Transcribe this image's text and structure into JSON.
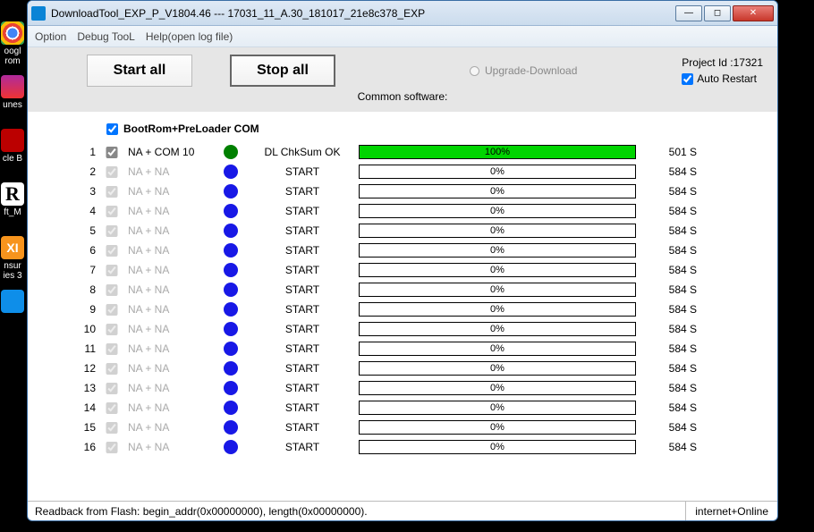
{
  "window": {
    "title": "DownloadTool_EXP_P_V1804.46 --- 17031_11_A.30_181017_21e8c378_EXP"
  },
  "menu": {
    "option": "Option",
    "debug": "Debug TooL",
    "help": "Help(open log file)"
  },
  "toolbar": {
    "start_all": "Start all",
    "stop_all": "Stop all",
    "upgrade": "Upgrade-Download",
    "project_id_label": "Project Id :17321",
    "auto_restart": "Auto Restart",
    "common": "Common software:"
  },
  "header_checkbox": "BootRom+PreLoader COM",
  "rows": [
    {
      "idx": "1",
      "port": "NA + COM 10",
      "active": true,
      "stage": "DL ChkSum OK",
      "pct": "100%",
      "fill": 100,
      "time": "501 S"
    },
    {
      "idx": "2",
      "port": "NA + NA",
      "active": false,
      "stage": "START",
      "pct": "0%",
      "fill": 0,
      "time": "584 S"
    },
    {
      "idx": "3",
      "port": "NA + NA",
      "active": false,
      "stage": "START",
      "pct": "0%",
      "fill": 0,
      "time": "584 S"
    },
    {
      "idx": "4",
      "port": "NA + NA",
      "active": false,
      "stage": "START",
      "pct": "0%",
      "fill": 0,
      "time": "584 S"
    },
    {
      "idx": "5",
      "port": "NA + NA",
      "active": false,
      "stage": "START",
      "pct": "0%",
      "fill": 0,
      "time": "584 S"
    },
    {
      "idx": "6",
      "port": "NA + NA",
      "active": false,
      "stage": "START",
      "pct": "0%",
      "fill": 0,
      "time": "584 S"
    },
    {
      "idx": "7",
      "port": "NA + NA",
      "active": false,
      "stage": "START",
      "pct": "0%",
      "fill": 0,
      "time": "584 S"
    },
    {
      "idx": "8",
      "port": "NA + NA",
      "active": false,
      "stage": "START",
      "pct": "0%",
      "fill": 0,
      "time": "584 S"
    },
    {
      "idx": "9",
      "port": "NA + NA",
      "active": false,
      "stage": "START",
      "pct": "0%",
      "fill": 0,
      "time": "584 S"
    },
    {
      "idx": "10",
      "port": "NA + NA",
      "active": false,
      "stage": "START",
      "pct": "0%",
      "fill": 0,
      "time": "584 S"
    },
    {
      "idx": "11",
      "port": "NA + NA",
      "active": false,
      "stage": "START",
      "pct": "0%",
      "fill": 0,
      "time": "584 S"
    },
    {
      "idx": "12",
      "port": "NA + NA",
      "active": false,
      "stage": "START",
      "pct": "0%",
      "fill": 0,
      "time": "584 S"
    },
    {
      "idx": "13",
      "port": "NA + NA",
      "active": false,
      "stage": "START",
      "pct": "0%",
      "fill": 0,
      "time": "584 S"
    },
    {
      "idx": "14",
      "port": "NA + NA",
      "active": false,
      "stage": "START",
      "pct": "0%",
      "fill": 0,
      "time": "584 S"
    },
    {
      "idx": "15",
      "port": "NA + NA",
      "active": false,
      "stage": "START",
      "pct": "0%",
      "fill": 0,
      "time": "584 S"
    },
    {
      "idx": "16",
      "port": "NA + NA",
      "active": false,
      "stage": "START",
      "pct": "0%",
      "fill": 0,
      "time": "584 S"
    }
  ],
  "statusbar": {
    "left": "Readback from Flash:  begin_addr(0x00000000), length(0x00000000).",
    "right": "internet+Online"
  },
  "desktop": {
    "l1": "oogl",
    "l2": "rom",
    "l3": "unes",
    "l4": "cle B",
    "l5": "ft_M",
    "l6": "nsur",
    "l7": "ies 3"
  },
  "colors": {
    "fill_green": "#00d400",
    "circle_blue": "#1818e6",
    "circle_green": "#008000"
  }
}
